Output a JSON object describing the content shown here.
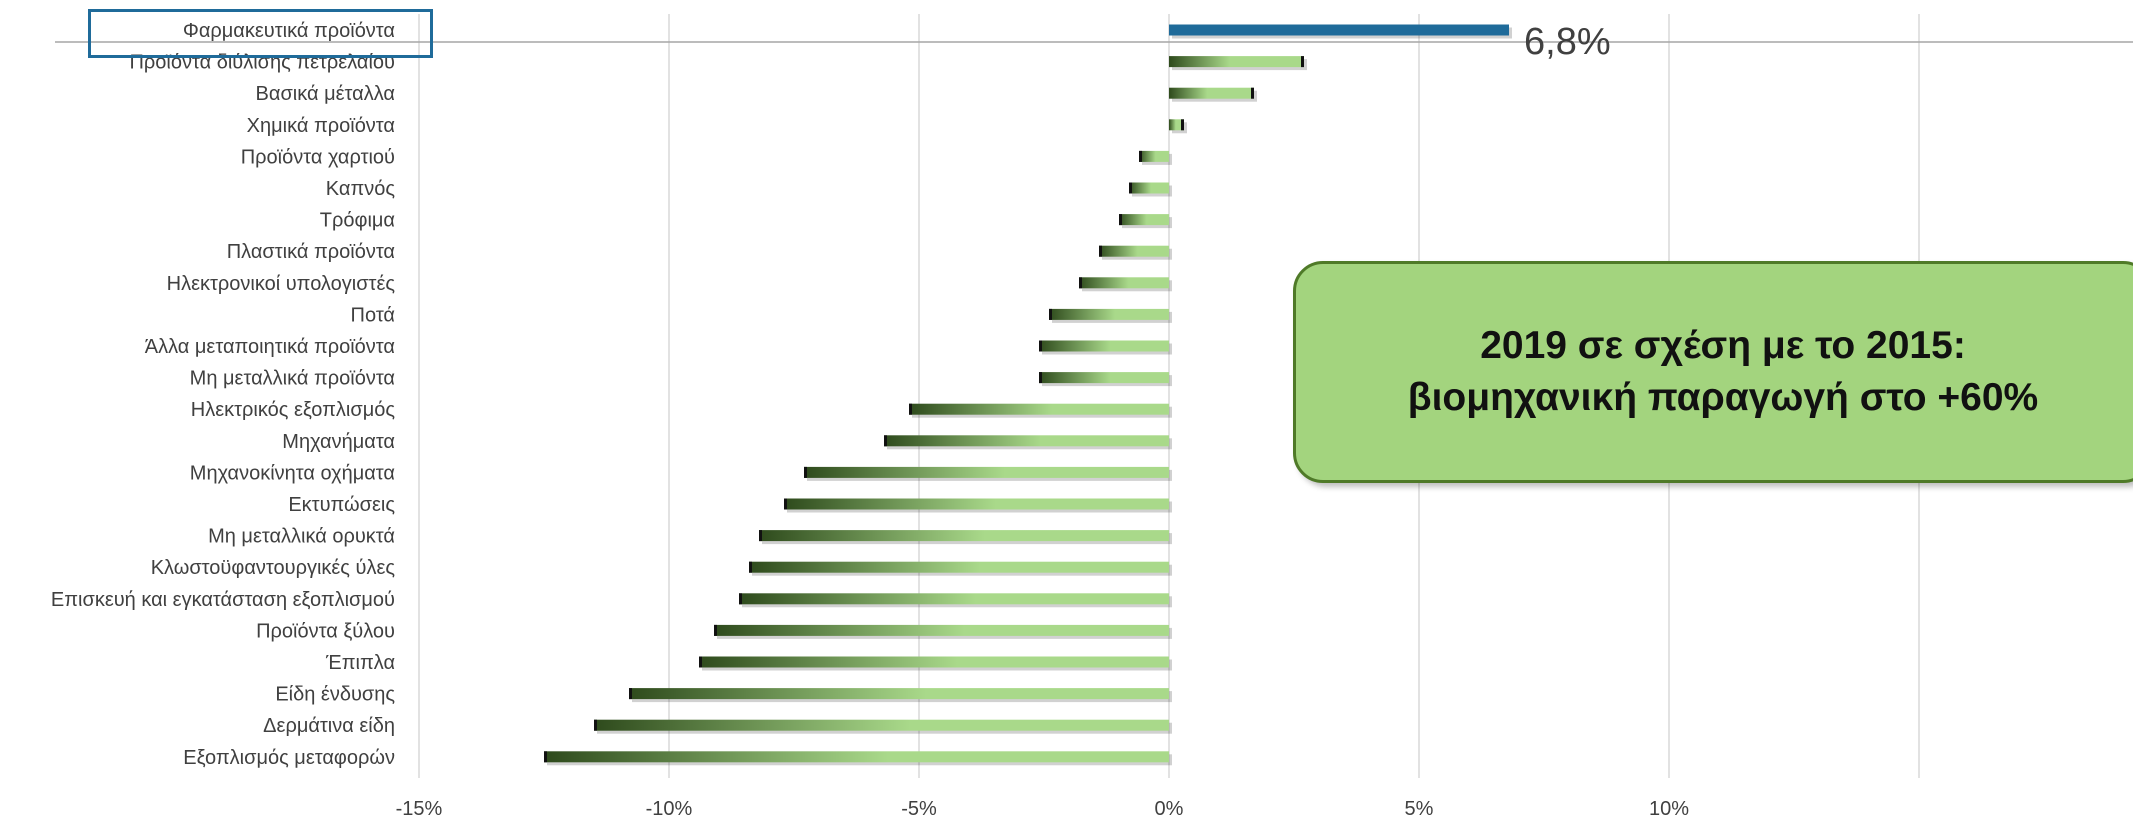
{
  "chart_data": {
    "type": "bar",
    "orientation": "horizontal",
    "categories": [
      "Φαρμακευτικά προϊόντα",
      "Προϊόντα διύλισης πετρελαίου",
      "Βασικά μέταλλα",
      "Χημικά προϊόντα",
      "Προϊόντα χαρτιού",
      "Καπνός",
      "Τρόφιμα",
      "Πλαστικά προϊόντα",
      "Ηλεκτρονικοί υπολογιστές",
      "Ποτά",
      "Άλλα μεταποιητικά προϊόντα",
      "Μη μεταλλικά προϊόντα",
      "Ηλεκτρικός εξοπλισμός",
      "Μηχανήματα",
      "Μηχανοκίνητα οχήματα",
      "Εκτυπώσεις",
      "Μη μεταλλικά ορυκτά",
      "Κλωστοϋφαντουργικές ύλες",
      "Επισκευή και εγκατάσταση εξοπλισμού",
      "Προϊόντα ξύλου",
      "Έπιπλα",
      "Είδη ένδυσης",
      "Δερμάτινα είδη",
      "Εξοπλισμός μεταφορών"
    ],
    "values": [
      6.8,
      2.7,
      1.7,
      0.3,
      -0.6,
      -0.8,
      -1.0,
      -1.4,
      -1.8,
      -2.4,
      -2.6,
      -2.6,
      -5.2,
      -5.7,
      -7.3,
      -7.7,
      -8.2,
      -8.4,
      -8.6,
      -9.1,
      -9.4,
      -10.8,
      -11.5,
      -12.5
    ],
    "xlim": [
      -15,
      15
    ],
    "xticks": [
      -15,
      -10,
      -5,
      0,
      5,
      10
    ],
    "xtick_labels": [
      "-15%",
      "-10%",
      "-5%",
      "0%",
      "5%",
      "10%"
    ],
    "grid": "vertical",
    "highlight": {
      "category": "Φαρμακευτικά προϊόντα",
      "value_label": "6,8%",
      "color": "#1f6b9a"
    },
    "bar_colors": {
      "light": "#a9d98a",
      "dark": "#2e4a1c"
    }
  },
  "callout": {
    "line1": "2019 σε σχέση με το 2015:",
    "line2": "βιομηχανική παραγωγή στο +60%",
    "fill": "#a3d47e",
    "border": "#4f7a28"
  }
}
